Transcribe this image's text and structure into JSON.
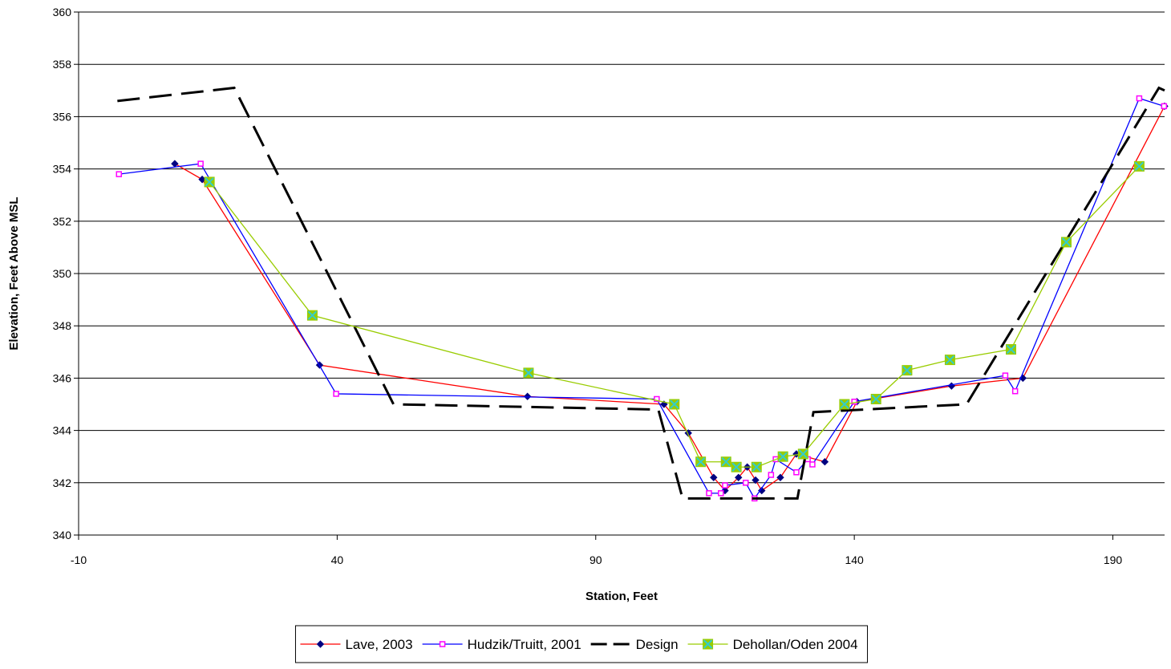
{
  "chart_data": {
    "type": "line",
    "x_label": "Station, Feet",
    "y_label": "Elevation, Feet Above MSL",
    "xlim": [
      -10,
      200
    ],
    "xticks": [
      -10,
      40,
      90,
      140,
      190
    ],
    "ylim": [
      340,
      360
    ],
    "yticks": [
      340,
      342,
      344,
      346,
      348,
      350,
      352,
      354,
      356,
      358,
      360
    ],
    "grid": true,
    "legend": "bottom",
    "series": [
      {
        "name": "Lave, 2003",
        "color": "#ff0000",
        "marker": "diamond",
        "marker_color": "#000080",
        "dash": false,
        "x": [
          8.6,
          13.9,
          36.6,
          76.8,
          103.2,
          107.9,
          112.8,
          115.0,
          117.6,
          119.3,
          120.9,
          122.1,
          125.7,
          128.8,
          134.3,
          140.5,
          158.8,
          172.6,
          200.0
        ],
        "values": [
          354.2,
          353.6,
          346.5,
          345.3,
          345.0,
          343.9,
          342.2,
          341.7,
          342.2,
          342.6,
          342.1,
          341.7,
          342.2,
          343.1,
          342.8,
          345.1,
          345.7,
          346.0,
          356.4
        ]
      },
      {
        "name": "Hudzik/Truitt, 2001",
        "color": "#0000ff",
        "marker": "square",
        "marker_color": "#ff00ff",
        "dash": false,
        "x": [
          -2.2,
          13.6,
          39.8,
          101.8,
          111.9,
          114.2,
          115.0,
          119.0,
          120.7,
          123.9,
          124.8,
          128.8,
          131.0,
          131.9,
          140.0,
          169.2,
          171.1,
          195.1,
          199.9
        ],
        "values": [
          353.8,
          354.2,
          345.4,
          345.2,
          341.6,
          341.6,
          341.9,
          342.0,
          341.4,
          342.3,
          342.9,
          342.4,
          342.9,
          342.7,
          345.1,
          346.1,
          345.5,
          356.7,
          356.4
        ]
      },
      {
        "name": "Design",
        "color": "#000000",
        "marker": "none",
        "marker_color": "#000000",
        "dash": true,
        "x": [
          -2.5,
          20.1,
          50.9,
          102.1,
          106.8,
          129.0,
          132.1,
          161.7,
          198.9,
          200.0
        ],
        "values": [
          356.6,
          357.1,
          345.0,
          344.8,
          341.4,
          341.4,
          344.7,
          345.0,
          357.1,
          357.0
        ]
      },
      {
        "name": "Dehollan/Oden 2004",
        "color": "#99cc00",
        "marker": "square-x",
        "marker_color": "#33cccc",
        "dash": false,
        "x": [
          15.3,
          35.2,
          77.0,
          105.2,
          110.3,
          115.2,
          117.2,
          121.1,
          126.2,
          130.1,
          138.1,
          144.2,
          150.2,
          158.5,
          170.3,
          181.0,
          195.1
        ],
        "values": [
          353.5,
          348.4,
          346.2,
          345.0,
          342.8,
          342.8,
          342.6,
          342.6,
          343.0,
          343.1,
          345.0,
          345.2,
          346.3,
          346.7,
          347.1,
          351.2,
          354.1
        ]
      }
    ]
  }
}
